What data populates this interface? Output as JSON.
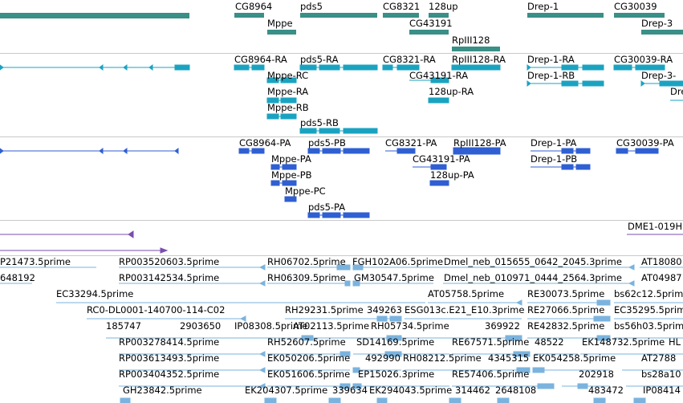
{
  "colors": {
    "gene": "#3a8f86",
    "transcript": "#1aa3c1",
    "cds": "#2f5fd2",
    "repeat": "#7a4db0",
    "est": "#7bb3de",
    "separator": "#c9c9c9"
  },
  "gene_track": {
    "labels": [
      "CG8964",
      "pds5",
      "CG8321",
      "128up",
      "Drep-1",
      "CG30039",
      "Mppe",
      "CG43191",
      "Drep-3",
      "RpIII128"
    ]
  },
  "transcript_track": {
    "labels": [
      "CG8964-RA",
      "pds5-RA",
      "CG8321-RA",
      "RpIII128-RA",
      "Drep-1-RA",
      "CG30039-RA",
      "Mppe-RC",
      "CG43191-RA",
      "Drep-1-RB",
      "Drep-3-",
      "Mppe-RA",
      "128up-RA",
      "Dre",
      "Mppe-RB",
      "pds5-RB"
    ]
  },
  "cds_track": {
    "labels": [
      "CG8964-PA",
      "pds5-PB",
      "CG8321-PA",
      "RpIII128-PA",
      "Drep-1-PA",
      "CG30039-PA",
      "Mppe-PA",
      "CG43191-PA",
      "Drep-1-PB",
      "Mppe-PB",
      "128up-PA",
      "Mppe-PC",
      "pds5-PA"
    ]
  },
  "repeat_track": {
    "labels": [
      "DME1-019H"
    ]
  },
  "est_track": {
    "labels": [
      "P21473.5prime",
      "RP003520603.5prime",
      "RH06702.5prime",
      "FGH102A06.5prime",
      "Dmel_neb_015655_0642_2045.3prime",
      "AT18080",
      "648192",
      "RP003142534.5prime",
      "RH06309.5prime",
      "GM30547.5prime",
      "Dmel_neb_010971_0444_2564.3prime",
      "AT04987",
      "EC33294.5prime",
      "AT05758.5prime",
      "RE30073.5prime",
      "bs62c12.5prime",
      "RC0-DL0001-140700-114-C02",
      "RH29231.5prime",
      "349263",
      "ESG013c.E21_E10.3prime",
      "RE27066.5prime",
      "EC35295.5prim",
      "185747",
      "2903650",
      "IP08308.5prime",
      "AT02113.5prime",
      "RH05734.5prime",
      "369922",
      "RE42832.5prime",
      "bs56h03.5prim",
      "RP003278414.5prime",
      "RH52607.5prime",
      "SD14169.5prime",
      "RE67571.5prime",
      "48522",
      "EK148732.5prime",
      "HL",
      "RP003613493.5prime",
      "EK050206.5prime",
      "492990",
      "RH08212.5prime",
      "4345315",
      "EK054258.5prime",
      "AT2788",
      "RP003404352.5prime",
      "EK051606.5prime",
      "EP15026.3prime",
      "RE57406.5prime",
      "202918",
      "bs28a10",
      "GH23842.5prime",
      "EK204307.5prime",
      "339634",
      "EK294043.5prime",
      "314462",
      "2648108",
      "483472",
      "IP08414"
    ]
  }
}
